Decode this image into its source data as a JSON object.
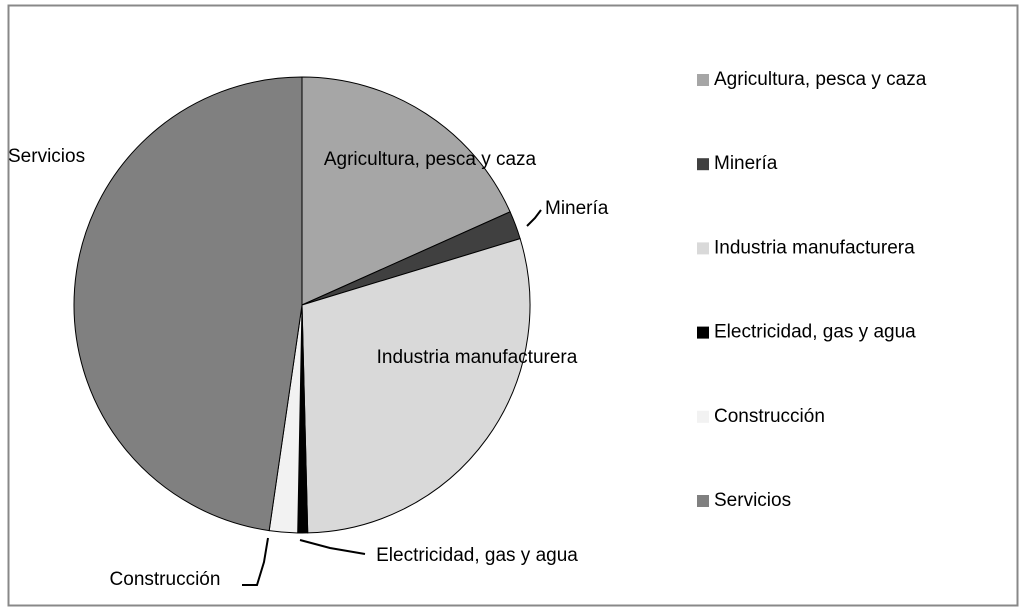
{
  "chart_data": {
    "type": "pie",
    "categories": [
      "Agricultura, pesca y caza",
      "Minería",
      "Industria manufacturera",
      "Electricidad, gas y agua",
      "Construcción",
      "Servicios"
    ],
    "values": [
      18.3,
      2.0,
      29.3,
      0.7,
      2.0,
      47.7
    ],
    "colors": [
      "#a6a6a6",
      "#404040",
      "#d9d9d9",
      "#000000",
      "#f2f2f2",
      "#808080"
    ],
    "legend": "right"
  }
}
